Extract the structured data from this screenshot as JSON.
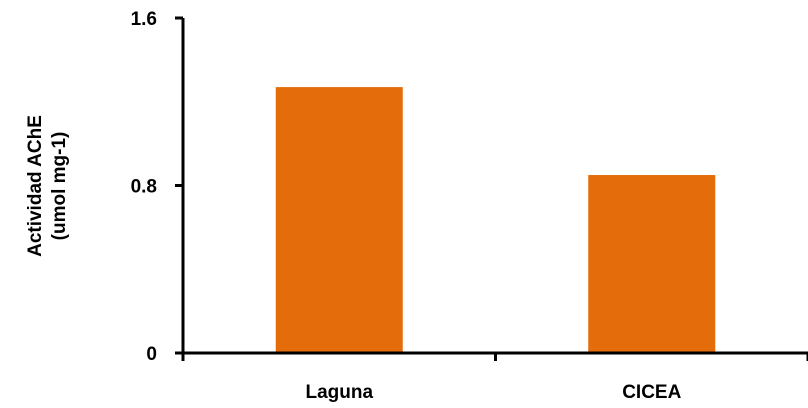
{
  "chart_data": {
    "type": "bar",
    "categories": [
      "Laguna",
      "CICEA"
    ],
    "values": [
      1.27,
      0.85
    ],
    "ylabel_lines": [
      "Actividad AChE",
      "(umol mg-1)"
    ],
    "ylim": [
      0,
      1.6
    ],
    "yticks": [
      0,
      0.8,
      1.6
    ],
    "ytick_labels": [
      "0",
      "0.8",
      "1.6"
    ],
    "bar_color": "#E46C0A",
    "grid": false
  }
}
